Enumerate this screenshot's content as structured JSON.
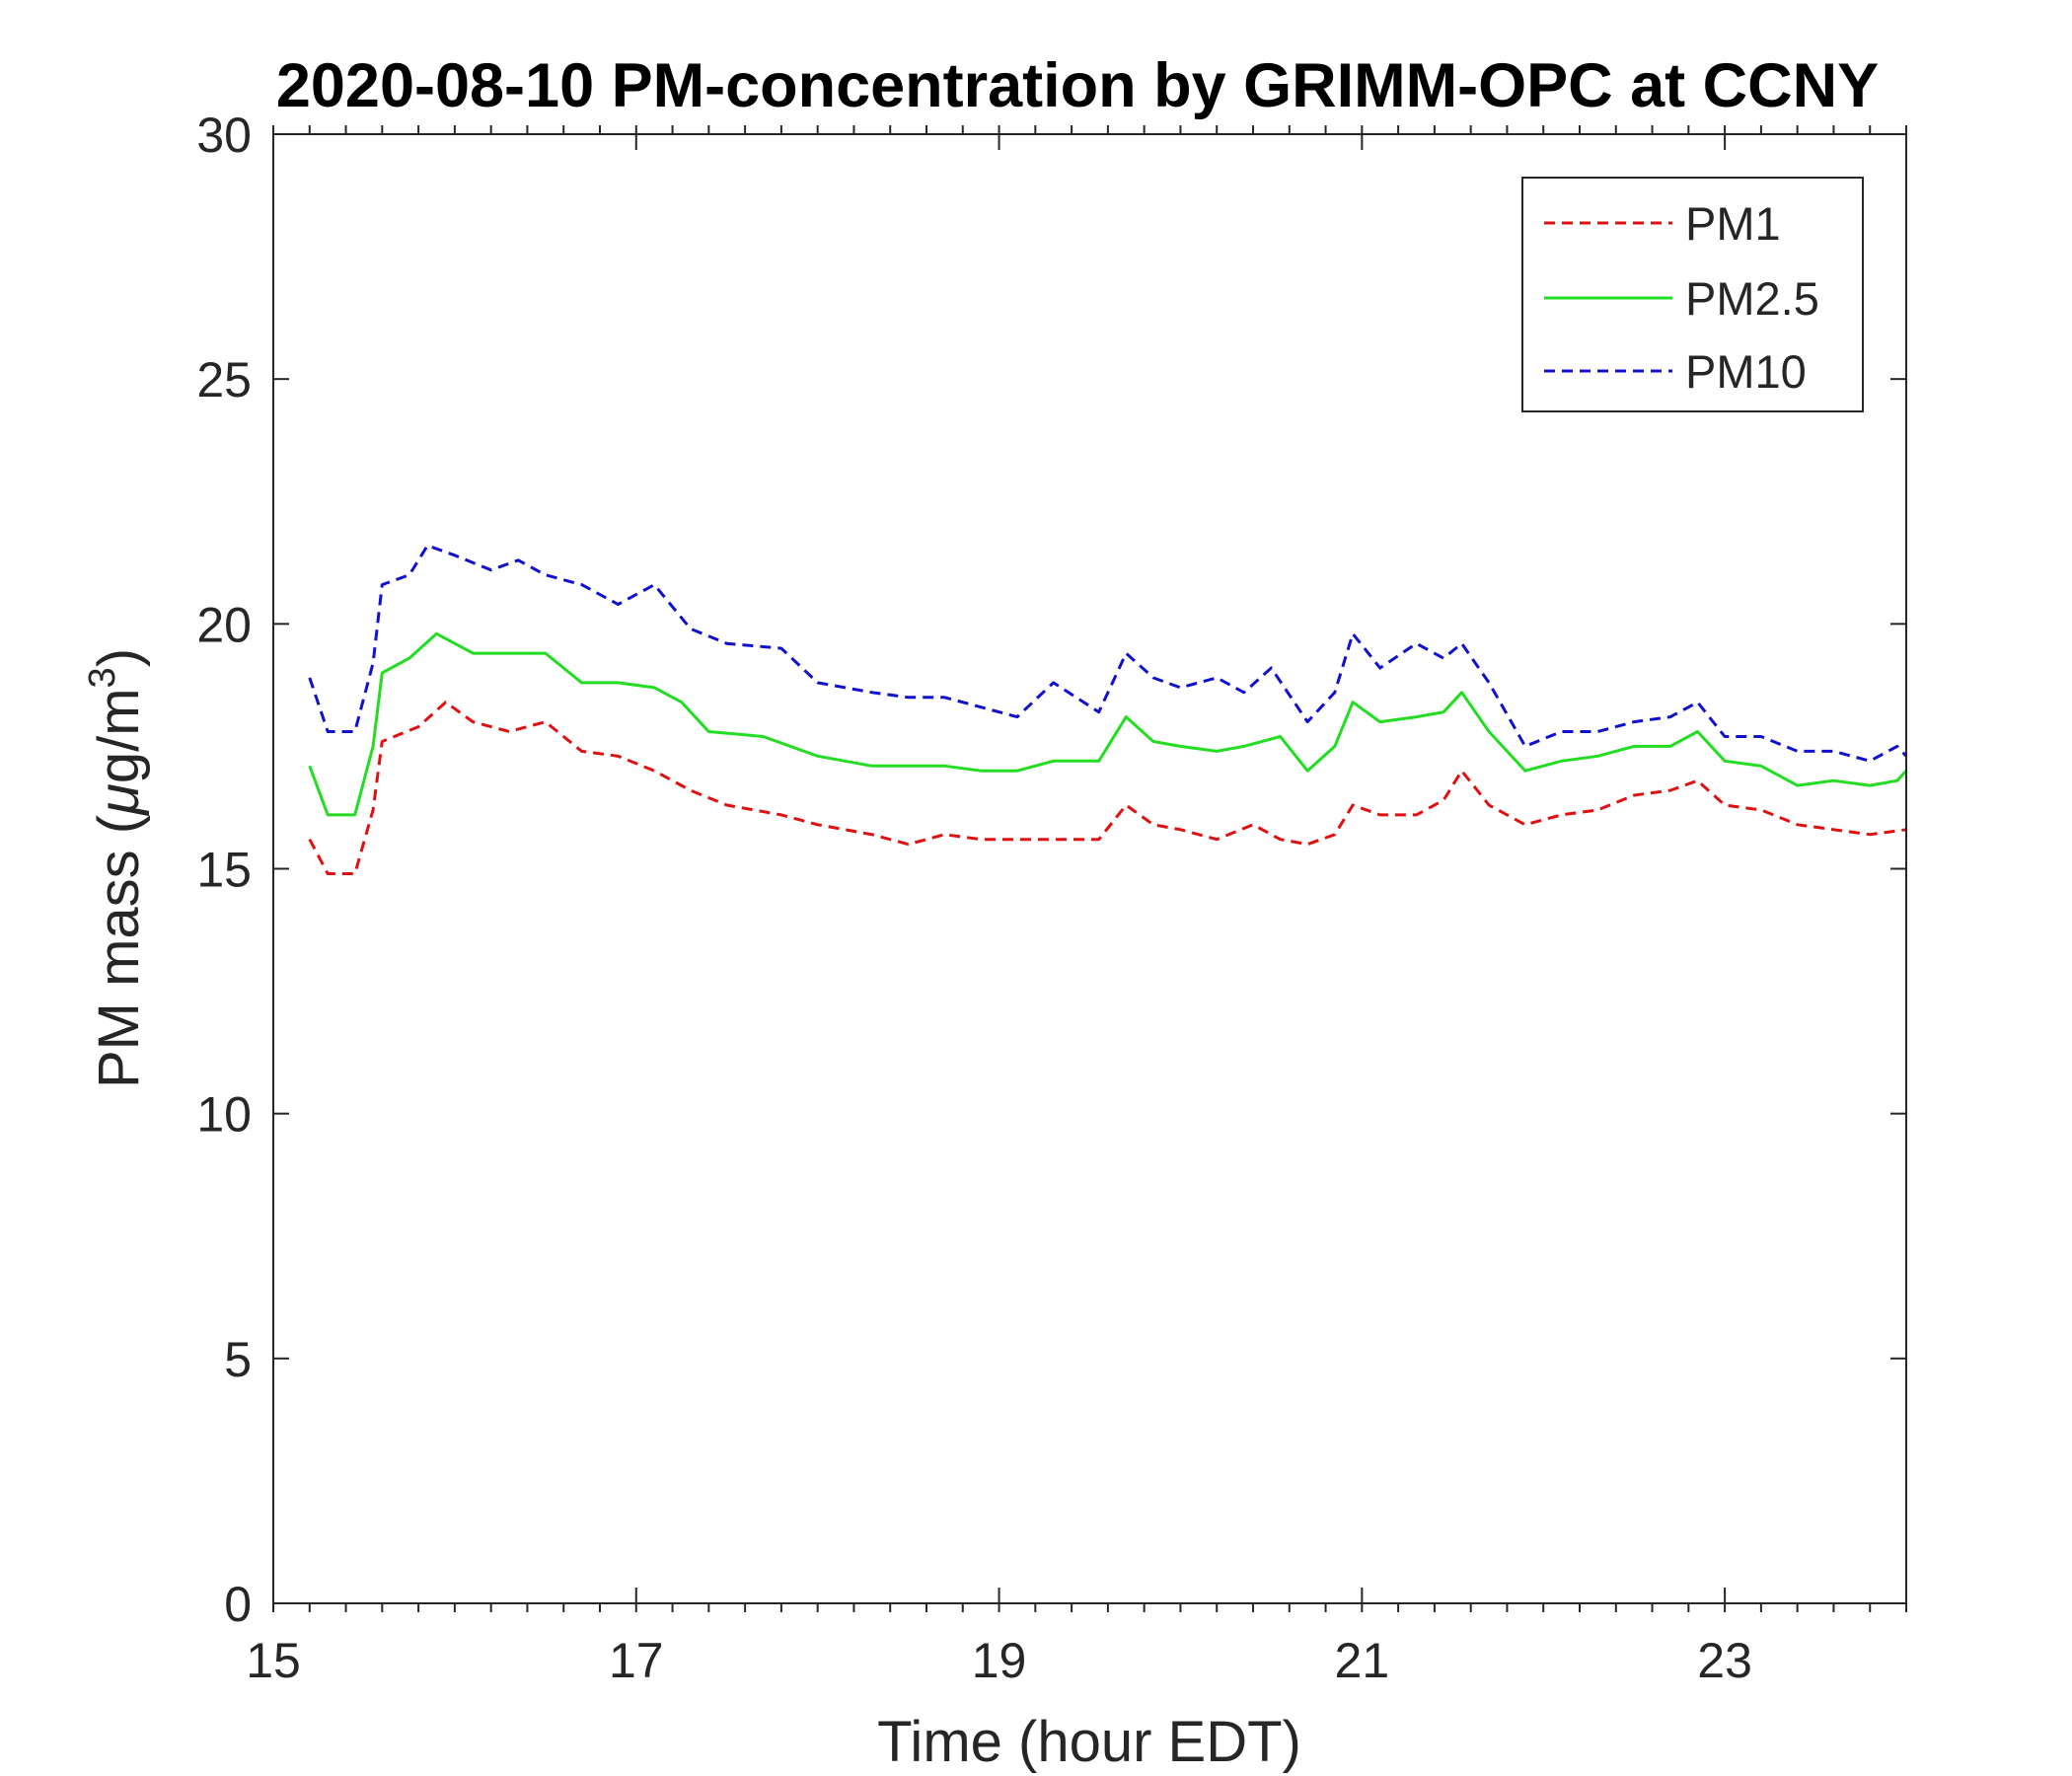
{
  "chart_data": {
    "type": "line",
    "title": "2020-08-10 PM-concentration by GRIMM-OPC at CCNY",
    "xlabel": "Time (hour EDT)",
    "ylabel": {
      "base": "PM mass (",
      "mu": "μ",
      "unit": "g/m",
      "sup": "3",
      "close": ")"
    },
    "xlim": [
      15,
      24
    ],
    "ylim": [
      0,
      30
    ],
    "xticks": [
      "15",
      "17",
      "19",
      "21",
      "23"
    ],
    "yticks": [
      "0",
      "5",
      "10",
      "15",
      "20",
      "25",
      "30"
    ],
    "grid": false,
    "legend_position": "top-right",
    "series": [
      {
        "name": "PM1",
        "color": "#e01010",
        "dash": "dashed",
        "x": [
          15.2,
          15.3,
          15.45,
          15.55,
          15.6,
          15.8,
          15.95,
          16.1,
          16.3,
          16.5,
          16.7,
          16.9,
          17.1,
          17.3,
          17.5,
          17.8,
          18.0,
          18.3,
          18.5,
          18.7,
          18.9,
          19.1,
          19.3,
          19.55,
          19.7,
          19.85,
          20.0,
          20.2,
          20.4,
          20.55,
          20.7,
          20.85,
          20.95,
          21.1,
          21.3,
          21.45,
          21.55,
          21.7,
          21.9,
          22.1,
          22.3,
          22.5,
          22.7,
          22.85,
          23.0,
          23.2,
          23.4,
          23.6,
          23.8,
          24.0
        ],
        "y": [
          15.6,
          14.9,
          14.9,
          16.2,
          17.6,
          17.9,
          18.4,
          18.0,
          17.8,
          18.0,
          17.4,
          17.3,
          17.0,
          16.6,
          16.3,
          16.1,
          15.9,
          15.7,
          15.5,
          15.7,
          15.6,
          15.6,
          15.6,
          15.6,
          16.3,
          15.9,
          15.8,
          15.6,
          15.9,
          15.6,
          15.5,
          15.7,
          16.3,
          16.1,
          16.1,
          16.4,
          17.0,
          16.3,
          15.9,
          16.1,
          16.2,
          16.5,
          16.6,
          16.8,
          16.3,
          16.2,
          15.9,
          15.8,
          15.7,
          15.8
        ]
      },
      {
        "name": "PM2.5",
        "color": "#22dd22",
        "dash": "solid",
        "x": [
          15.2,
          15.3,
          15.45,
          15.55,
          15.6,
          15.75,
          15.9,
          16.1,
          16.3,
          16.5,
          16.7,
          16.9,
          17.1,
          17.25,
          17.4,
          17.7,
          18.0,
          18.3,
          18.5,
          18.7,
          18.9,
          19.1,
          19.3,
          19.55,
          19.7,
          19.85,
          20.0,
          20.2,
          20.35,
          20.55,
          20.7,
          20.85,
          20.95,
          21.1,
          21.3,
          21.45,
          21.55,
          21.7,
          21.9,
          22.1,
          22.3,
          22.5,
          22.7,
          22.85,
          23.0,
          23.2,
          23.4,
          23.6,
          23.8,
          23.95,
          24.0
        ],
        "y": [
          17.1,
          16.1,
          16.1,
          17.5,
          19.0,
          19.3,
          19.8,
          19.4,
          19.4,
          19.4,
          18.8,
          18.8,
          18.7,
          18.4,
          17.8,
          17.7,
          17.3,
          17.1,
          17.1,
          17.1,
          17.0,
          17.0,
          17.2,
          17.2,
          18.1,
          17.6,
          17.5,
          17.4,
          17.5,
          17.7,
          17.0,
          17.5,
          18.4,
          18.0,
          18.1,
          18.2,
          18.6,
          17.8,
          17.0,
          17.2,
          17.3,
          17.5,
          17.5,
          17.8,
          17.2,
          17.1,
          16.7,
          16.8,
          16.7,
          16.8,
          17.0
        ]
      },
      {
        "name": "PM10",
        "color": "#1010d0",
        "dash": "dashed",
        "x": [
          15.2,
          15.3,
          15.45,
          15.55,
          15.6,
          15.75,
          15.85,
          16.0,
          16.2,
          16.35,
          16.5,
          16.7,
          16.9,
          17.0,
          17.1,
          17.3,
          17.5,
          17.8,
          18.0,
          18.3,
          18.5,
          18.7,
          18.9,
          19.1,
          19.3,
          19.55,
          19.7,
          19.85,
          20.0,
          20.2,
          20.35,
          20.5,
          20.7,
          20.85,
          20.95,
          21.1,
          21.3,
          21.45,
          21.55,
          21.7,
          21.9,
          22.1,
          22.3,
          22.5,
          22.7,
          22.85,
          23.0,
          23.2,
          23.4,
          23.6,
          23.8,
          23.95,
          24.0
        ],
        "y": [
          18.9,
          17.8,
          17.8,
          19.2,
          20.8,
          21.0,
          21.6,
          21.4,
          21.1,
          21.3,
          21.0,
          20.8,
          20.4,
          20.6,
          20.8,
          19.9,
          19.6,
          19.5,
          18.8,
          18.6,
          18.5,
          18.5,
          18.3,
          18.1,
          18.8,
          18.2,
          19.4,
          18.9,
          18.7,
          18.9,
          18.6,
          19.1,
          18.0,
          18.6,
          19.8,
          19.1,
          19.6,
          19.3,
          19.6,
          18.8,
          17.5,
          17.8,
          17.8,
          18.0,
          18.1,
          18.4,
          17.7,
          17.7,
          17.4,
          17.4,
          17.2,
          17.5,
          17.3
        ]
      }
    ]
  }
}
